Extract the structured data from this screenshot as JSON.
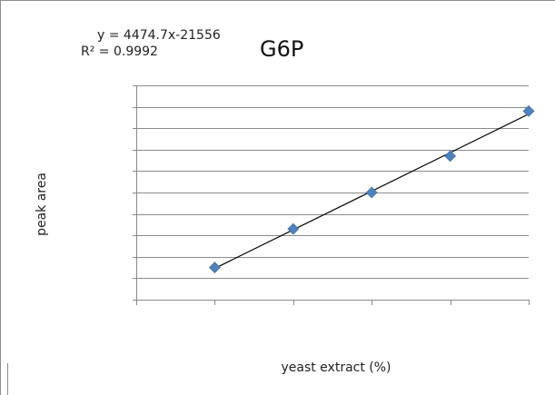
{
  "chart_data": {
    "type": "scatter",
    "title": "G6P",
    "equation": "y  = 4474.7x-21556",
    "r_squared": "R² = 0.9992",
    "xlabel": "yeast extract (%)",
    "ylabel": "peak area",
    "x_tick_count": 6,
    "y_gridline_count": 10,
    "grid": true,
    "tick_labels_visible": false,
    "trendline": "linear",
    "series": [
      {
        "points": [
          {
            "x": 1,
            "y": 1.5
          },
          {
            "x": 2,
            "y": 3.3
          },
          {
            "x": 3,
            "y": 5.0
          },
          {
            "x": 4,
            "y": 6.7
          },
          {
            "x": 5,
            "y": 8.8
          }
        ]
      }
    ],
    "xlim": [
      0,
      5
    ],
    "ylim": [
      0,
      10
    ],
    "colors": {
      "marker": "#4f81bd",
      "trendline": "#000000",
      "grid": "#8a8a8a"
    }
  }
}
